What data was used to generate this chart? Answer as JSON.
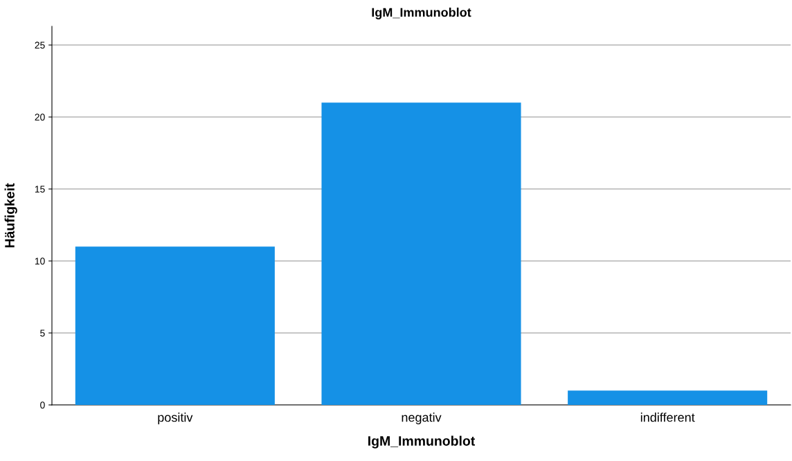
{
  "chart_data": {
    "type": "bar",
    "title": "IgM_Immunoblot",
    "xlabel": "IgM_Immunoblot",
    "ylabel": "Häufigkeit",
    "categories": [
      "positiv",
      "negativ",
      "indifferent"
    ],
    "values": [
      11,
      21,
      1
    ],
    "color": "#1591e6",
    "ylim": [
      0,
      26.3
    ],
    "yticks": [
      0,
      5,
      10,
      15,
      20,
      25
    ],
    "grid": "y"
  }
}
